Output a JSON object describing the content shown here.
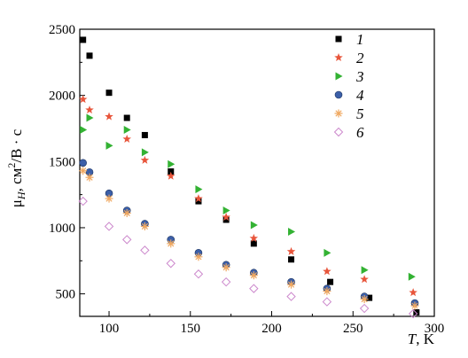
{
  "chart_data": {
    "type": "scatter",
    "xlabel": {
      "main": "T",
      "unit": ", K"
    },
    "ylabel": {
      "mu": "μ",
      "sub": "H",
      "unit": ", см",
      "sup": "2",
      "tail": "/В · с"
    },
    "xlim": [
      82,
      300
    ],
    "ylim": [
      330,
      2500
    ],
    "xticks": [
      "100",
      "150",
      "200",
      "250",
      "300"
    ],
    "yticks": [
      "500",
      "1000",
      "1500",
      "2000",
      "2500"
    ],
    "legend_position": "top-right",
    "series": [
      {
        "name": "1",
        "marker": "square",
        "color": "#000000",
        "x": [
          84,
          88,
          100,
          111,
          122,
          138,
          155,
          172,
          189,
          212,
          236,
          260,
          289
        ],
        "y": [
          2420,
          2300,
          2020,
          1830,
          1700,
          1425,
          1200,
          1060,
          880,
          760,
          590,
          470,
          360
        ]
      },
      {
        "name": "2",
        "marker": "star",
        "color": "#e8553b",
        "x": [
          84,
          88,
          100,
          111,
          122,
          138,
          155,
          172,
          189,
          212,
          234,
          257,
          287
        ],
        "y": [
          1970,
          1890,
          1840,
          1670,
          1510,
          1390,
          1220,
          1080,
          920,
          820,
          670,
          610,
          510
        ]
      },
      {
        "name": "3",
        "marker": "triangle",
        "color": "#33b233",
        "x": [
          84,
          88,
          100,
          111,
          122,
          138,
          155,
          172,
          189,
          212,
          234,
          257,
          286
        ],
        "y": [
          1740,
          1830,
          1620,
          1740,
          1570,
          1480,
          1290,
          1130,
          1020,
          970,
          810,
          680,
          630
        ]
      },
      {
        "name": "4",
        "marker": "circle",
        "color": "#3c5fa8",
        "x": [
          84,
          88,
          100,
          111,
          122,
          138,
          155,
          172,
          189,
          212,
          234,
          257,
          288
        ],
        "y": [
          1490,
          1420,
          1260,
          1130,
          1030,
          910,
          810,
          720,
          660,
          590,
          540,
          480,
          430
        ]
      },
      {
        "name": "5",
        "marker": "asterisk",
        "color": "#f0a860",
        "x": [
          84,
          88,
          100,
          111,
          122,
          138,
          155,
          172,
          189,
          212,
          234,
          257,
          288
        ],
        "y": [
          1430,
          1380,
          1220,
          1110,
          1010,
          880,
          780,
          700,
          640,
          570,
          520,
          460,
          410
        ]
      },
      {
        "name": "6",
        "marker": "diamond",
        "color": "#cc88cc",
        "x": [
          84,
          100,
          111,
          122,
          138,
          155,
          172,
          189,
          212,
          234,
          257,
          287
        ],
        "y": [
          1200,
          1010,
          910,
          830,
          730,
          650,
          590,
          540,
          480,
          440,
          390,
          350
        ]
      }
    ]
  }
}
